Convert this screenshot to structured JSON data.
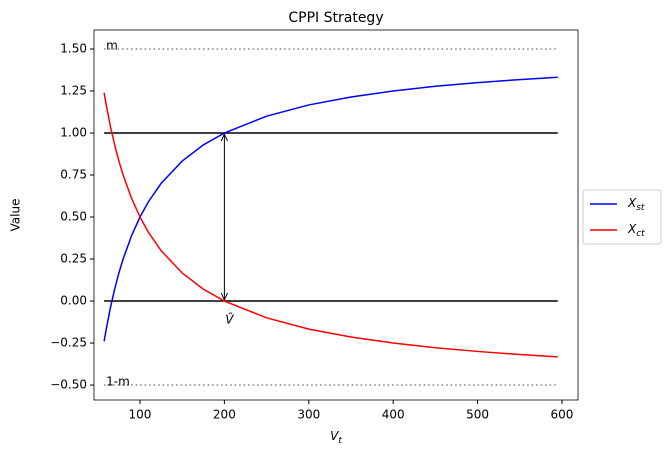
{
  "chart_data": {
    "type": "line",
    "title": "CPPI Strategy",
    "xlabel": "Vt",
    "ylabel": "Value",
    "x": [
      57.5,
      60,
      65,
      70,
      75,
      80,
      90,
      100,
      110,
      125,
      150,
      175,
      200,
      250,
      300,
      350,
      400,
      450,
      500,
      550,
      595
    ],
    "series": [
      {
        "name": "Xst",
        "color": "#0000ff",
        "values": [
          -0.239,
          -0.167,
          -0.038,
          0.071,
          0.167,
          0.25,
          0.389,
          0.5,
          0.591,
          0.7,
          0.833,
          0.929,
          1.0,
          1.1,
          1.167,
          1.214,
          1.25,
          1.278,
          1.3,
          1.318,
          1.332
        ]
      },
      {
        "name": "Xct",
        "color": "#ff0000",
        "values": [
          1.239,
          1.167,
          1.038,
          0.929,
          0.833,
          0.75,
          0.611,
          0.5,
          0.409,
          0.3,
          0.167,
          0.071,
          0.0,
          -0.1,
          -0.167,
          -0.214,
          -0.25,
          -0.278,
          -0.3,
          -0.318,
          -0.332
        ]
      }
    ],
    "hlines": [
      {
        "y": 1.5,
        "style": "dotted",
        "color": "#808080",
        "label": "m"
      },
      {
        "y": 1.0,
        "style": "solid",
        "color": "#000000"
      },
      {
        "y": 0.0,
        "style": "solid",
        "color": "#000000"
      },
      {
        "y": -0.5,
        "style": "dotted",
        "color": "#808080",
        "label": "1-m"
      }
    ],
    "arrow": {
      "x": 200,
      "y1": 1.0,
      "y2": 0.0,
      "label": "V̂"
    },
    "xlim": [
      45.5,
      619
    ],
    "ylim": [
      -0.589,
      1.613
    ],
    "xticks": [
      100,
      200,
      300,
      400,
      500,
      600
    ],
    "yticks": [
      {
        "value": -0.5,
        "label": "−0.50"
      },
      {
        "value": -0.25,
        "label": "−0.25"
      },
      {
        "value": 0,
        "label": "0.00"
      },
      {
        "value": 0.25,
        "label": "0.25"
      },
      {
        "value": 0.5,
        "label": "0.50"
      },
      {
        "value": 0.75,
        "label": "0.75"
      },
      {
        "value": 1.0,
        "label": "1.00"
      },
      {
        "value": 1.25,
        "label": "1.25"
      },
      {
        "value": 1.5,
        "label": "1.50"
      }
    ],
    "legend": "right"
  }
}
